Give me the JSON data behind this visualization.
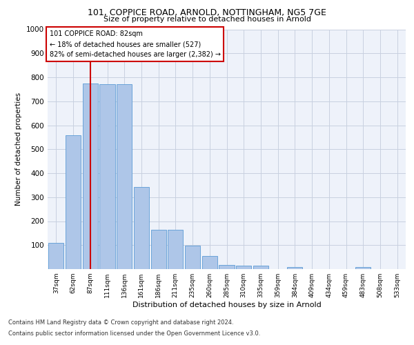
{
  "title1": "101, COPPICE ROAD, ARNOLD, NOTTINGHAM, NG5 7GE",
  "title2": "Size of property relative to detached houses in Arnold",
  "xlabel": "Distribution of detached houses by size in Arnold",
  "ylabel": "Number of detached properties",
  "categories": [
    "37sqm",
    "62sqm",
    "87sqm",
    "111sqm",
    "136sqm",
    "161sqm",
    "186sqm",
    "211sqm",
    "235sqm",
    "260sqm",
    "285sqm",
    "310sqm",
    "335sqm",
    "359sqm",
    "384sqm",
    "409sqm",
    "434sqm",
    "459sqm",
    "483sqm",
    "508sqm",
    "533sqm"
  ],
  "values": [
    110,
    557,
    775,
    770,
    770,
    342,
    163,
    163,
    97,
    55,
    18,
    14,
    14,
    0,
    9,
    0,
    0,
    0,
    9,
    0,
    0
  ],
  "bar_color": "#aec6e8",
  "bar_edge_color": "#5b9bd5",
  "grid_color": "#c8d0e0",
  "red_line_x": 2,
  "annotation_text": "101 COPPICE ROAD: 82sqm\n← 18% of detached houses are smaller (527)\n82% of semi-detached houses are larger (2,382) →",
  "annotation_box_color": "#ffffff",
  "annotation_box_edge_color": "#cc0000",
  "footer1": "Contains HM Land Registry data © Crown copyright and database right 2024.",
  "footer2": "Contains public sector information licensed under the Open Government Licence v3.0.",
  "ylim": [
    0,
    1000
  ],
  "yticks": [
    0,
    100,
    200,
    300,
    400,
    500,
    600,
    700,
    800,
    900,
    1000
  ],
  "bg_color": "#eef2fa"
}
